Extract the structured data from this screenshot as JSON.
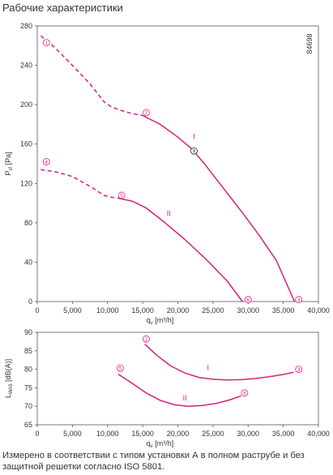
{
  "heading": "Рабочие характеристики",
  "caption": "Измерено в соответствии с типом установки А в полном раструбе и без защитной решетки согласно ISO 5801.",
  "doc_id": "84698",
  "colors": {
    "curve": "#d6207e",
    "axis": "#555555",
    "grid": "#eeeeee",
    "text": "#333333"
  },
  "chart_data": [
    {
      "type": "line",
      "xlabel": "q_v [m³/h]",
      "ylabel": "P_sf [Pa]",
      "xlim": [
        0,
        40000
      ],
      "ylim": [
        0,
        280
      ],
      "xticks": [
        "0",
        "5,000",
        "10,000",
        "15,000",
        "20,000",
        "25,000",
        "30,000",
        "35,000",
        "40,000"
      ],
      "yticks": [
        "0",
        "40",
        "80",
        "120",
        "160",
        "200",
        "240",
        "280"
      ],
      "grid": false,
      "series": [
        {
          "name": "I",
          "dashed_points": [
            [
              500,
              270
            ],
            [
              2500,
              258
            ],
            [
              5000,
              240
            ],
            [
              7500,
              221
            ],
            [
              9500,
              203
            ],
            [
              10500,
              198
            ],
            [
              12000,
              194
            ],
            [
              13500,
              191
            ],
            [
              15000,
              189
            ]
          ],
          "solid_points": [
            [
              15000,
              189
            ],
            [
              17500,
              180
            ],
            [
              20000,
              167
            ],
            [
              22000,
              155
            ],
            [
              24000,
              138
            ],
            [
              26500,
              115
            ],
            [
              29000,
              92
            ],
            [
              31500,
              68
            ],
            [
              34000,
              42
            ],
            [
              36600,
              0
            ]
          ]
        },
        {
          "name": "II",
          "dashed_points": [
            [
              500,
              134
            ],
            [
              2500,
              132
            ],
            [
              5000,
              127
            ],
            [
              7500,
              117
            ],
            [
              9500,
              108
            ],
            [
              10500,
              106
            ],
            [
              11500,
              105
            ]
          ],
          "solid_points": [
            [
              11500,
              105
            ],
            [
              13500,
              102
            ],
            [
              15500,
              95
            ],
            [
              18000,
              81
            ],
            [
              21000,
              63
            ],
            [
              24000,
              43
            ],
            [
              27000,
              21
            ],
            [
              29200,
              0
            ]
          ]
        }
      ],
      "points": [
        {
          "label": "1",
          "x": 1300,
          "y": 263
        },
        {
          "label": "2",
          "x": 15500,
          "y": 192
        },
        {
          "label": "3",
          "x": 37200,
          "y": 2
        },
        {
          "label": "4",
          "x": 1300,
          "y": 142
        },
        {
          "label": "5",
          "x": 12000,
          "y": 108
        },
        {
          "label": "6",
          "x": 30000,
          "y": 2
        },
        {
          "label": "9",
          "x": 22300,
          "y": 153
        }
      ],
      "curve_labels": [
        {
          "text": "I",
          "x": 22300,
          "y": 165
        },
        {
          "text": "II",
          "x": 18700,
          "y": 87
        }
      ]
    },
    {
      "type": "line",
      "xlabel": "q_v [m³/h]",
      "ylabel": "L_WA5 [dB(A)]",
      "xlim": [
        0,
        40000
      ],
      "ylim": [
        65,
        90
      ],
      "xticks": [
        "0",
        "5,000",
        "10,000",
        "15,000",
        "20,000",
        "25,000",
        "30,000",
        "35,000",
        "40,000"
      ],
      "yticks": [
        "65",
        "70",
        "75",
        "80",
        "85",
        "90"
      ],
      "grid": false,
      "series": [
        {
          "name": "I",
          "solid_points": [
            [
              15300,
              86.8
            ],
            [
              17000,
              83.8
            ],
            [
              19000,
              80.9
            ],
            [
              21000,
              79.0
            ],
            [
              23000,
              77.8
            ],
            [
              25000,
              77.3
            ],
            [
              27000,
              77.1
            ],
            [
              29000,
              77.2
            ],
            [
              31000,
              77.5
            ],
            [
              33000,
              78.0
            ],
            [
              35000,
              78.6
            ],
            [
              36500,
              79.2
            ]
          ]
        },
        {
          "name": "II",
          "solid_points": [
            [
              11500,
              78.7
            ],
            [
              13500,
              76.2
            ],
            [
              15500,
              73.6
            ],
            [
              17500,
              71.6
            ],
            [
              19500,
              70.4
            ],
            [
              21500,
              70.0
            ],
            [
              23500,
              70.2
            ],
            [
              25500,
              70.8
            ],
            [
              27500,
              71.8
            ],
            [
              29000,
              72.8
            ]
          ]
        }
      ],
      "points": [
        {
          "label": "2",
          "x": 15500,
          "y": 88.2
        },
        {
          "label": "3",
          "x": 37200,
          "y": 80.0
        },
        {
          "label": "5",
          "x": 11800,
          "y": 80.3
        },
        {
          "label": "6",
          "x": 29500,
          "y": 73.6
        }
      ],
      "curve_labels": [
        {
          "text": "I",
          "x": 24300,
          "y": 79.8
        },
        {
          "text": "II",
          "x": 21000,
          "y": 71.6
        }
      ]
    }
  ]
}
